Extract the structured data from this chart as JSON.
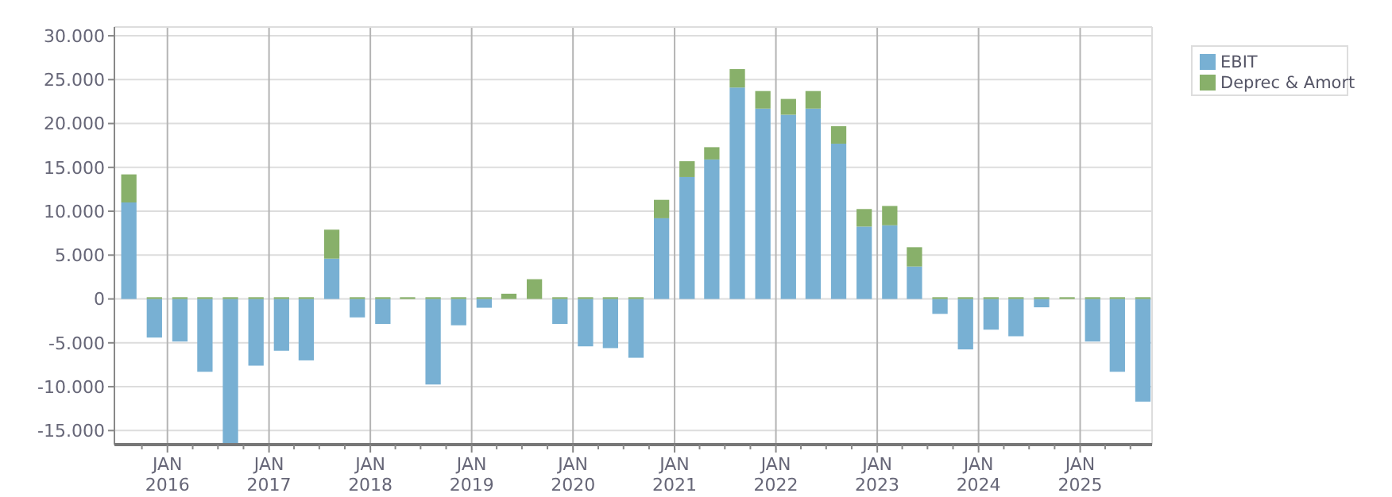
{
  "chart_data": {
    "type": "bar",
    "stacked": true,
    "x": [
      "2015-08-15",
      "2015-11-15",
      "2016-02-15",
      "2016-05-15",
      "2016-08-15",
      "2016-11-15",
      "2017-02-15",
      "2017-05-15",
      "2017-08-15",
      "2017-11-15",
      "2018-02-15",
      "2018-05-15",
      "2018-08-15",
      "2018-11-15",
      "2019-02-15",
      "2019-05-15",
      "2019-08-15",
      "2019-11-15",
      "2020-02-15",
      "2020-05-15",
      "2020-08-15",
      "2020-11-15",
      "2021-02-15",
      "2021-05-15",
      "2021-08-15",
      "2021-11-15",
      "2022-02-15",
      "2022-05-15",
      "2022-08-15",
      "2022-11-15",
      "2023-02-15",
      "2023-05-15",
      "2023-08-15",
      "2023-11-15",
      "2024-02-15",
      "2024-05-15",
      "2024-08-15",
      "2024-11-15",
      "2025-02-15",
      "2025-05-15",
      "2025-08-15"
    ],
    "series": [
      {
        "name": "EBIT",
        "color": "#78b0d3",
        "values": [
          11000,
          -4400,
          -4850,
          -8300,
          -16600,
          -7600,
          -5900,
          -7000,
          4600,
          -2100,
          -2850,
          0,
          -9750,
          -3000,
          -1000,
          0,
          0,
          -2850,
          -5400,
          -5600,
          -6700,
          9200,
          13900,
          15900,
          24100,
          21700,
          21000,
          21700,
          17700,
          8250,
          8400,
          3700,
          -1700,
          -5750,
          -3500,
          -4250,
          -950,
          0,
          -4850,
          -8300,
          -11700
        ]
      },
      {
        "name": "Deprec & Amort",
        "color": "#88b06a",
        "values": [
          3200,
          200,
          200,
          200,
          200,
          200,
          200,
          200,
          3300,
          200,
          200,
          200,
          200,
          200,
          200,
          600,
          2250,
          200,
          200,
          200,
          200,
          2100,
          1800,
          1400,
          2100,
          2000,
          1800,
          2000,
          2000,
          2000,
          2200,
          2200,
          200,
          200,
          200,
          200,
          200,
          200,
          200,
          200,
          200
        ]
      }
    ],
    "xlim": [
      "2015-06-24",
      "2025-09-17"
    ],
    "xticks": [
      {
        "value": "2015-10-01",
        "label": null
      },
      {
        "value": "2016-01-01",
        "label": "JAN 2016"
      },
      {
        "value": "2016-04-01",
        "label": null
      },
      {
        "value": "2016-07-01",
        "label": null
      },
      {
        "value": "2016-10-01",
        "label": null
      },
      {
        "value": "2017-01-01",
        "label": "JAN 2017"
      },
      {
        "value": "2017-04-01",
        "label": null
      },
      {
        "value": "2017-07-01",
        "label": null
      },
      {
        "value": "2017-10-01",
        "label": null
      },
      {
        "value": "2018-01-01",
        "label": "JAN 2018"
      },
      {
        "value": "2018-04-01",
        "label": null
      },
      {
        "value": "2018-07-01",
        "label": null
      },
      {
        "value": "2018-10-01",
        "label": null
      },
      {
        "value": "2019-01-01",
        "label": "JAN 2019"
      },
      {
        "value": "2019-04-01",
        "label": null
      },
      {
        "value": "2019-07-01",
        "label": null
      },
      {
        "value": "2019-10-01",
        "label": null
      },
      {
        "value": "2020-01-01",
        "label": "JAN 2020"
      },
      {
        "value": "2020-04-01",
        "label": null
      },
      {
        "value": "2020-07-01",
        "label": null
      },
      {
        "value": "2020-10-01",
        "label": null
      },
      {
        "value": "2021-01-01",
        "label": "JAN 2021"
      },
      {
        "value": "2021-04-01",
        "label": null
      },
      {
        "value": "2021-07-01",
        "label": null
      },
      {
        "value": "2021-10-01",
        "label": null
      },
      {
        "value": "2022-01-01",
        "label": "JAN 2022"
      },
      {
        "value": "2022-04-01",
        "label": null
      },
      {
        "value": "2022-07-01",
        "label": null
      },
      {
        "value": "2022-10-01",
        "label": null
      },
      {
        "value": "2023-01-01",
        "label": "JAN 2023"
      },
      {
        "value": "2023-04-01",
        "label": null
      },
      {
        "value": "2023-07-01",
        "label": null
      },
      {
        "value": "2023-10-01",
        "label": null
      },
      {
        "value": "2024-01-01",
        "label": "JAN 2024"
      },
      {
        "value": "2024-04-01",
        "label": null
      },
      {
        "value": "2024-07-01",
        "label": null
      },
      {
        "value": "2024-10-01",
        "label": null
      },
      {
        "value": "2025-01-01",
        "label": "JAN 2025"
      },
      {
        "value": "2025-04-01",
        "label": null
      },
      {
        "value": "2025-07-01",
        "label": null
      }
    ],
    "ylim": [
      -16600,
      31000
    ],
    "yticks": [
      {
        "value": -15000,
        "label": "-15.000"
      },
      {
        "value": -10000,
        "label": "-10.000"
      },
      {
        "value": -5000,
        "label": "-5.000"
      },
      0,
      {
        "value": 5000,
        "label": "5.000"
      },
      {
        "value": 10000,
        "label": "10.000"
      },
      {
        "value": 15000,
        "label": "15.000"
      },
      {
        "value": 20000,
        "label": "20.000"
      },
      {
        "value": 25000,
        "label": "25.000"
      },
      {
        "value": 30000,
        "label": "30.000"
      }
    ],
    "grid": true,
    "legend": "top right"
  }
}
